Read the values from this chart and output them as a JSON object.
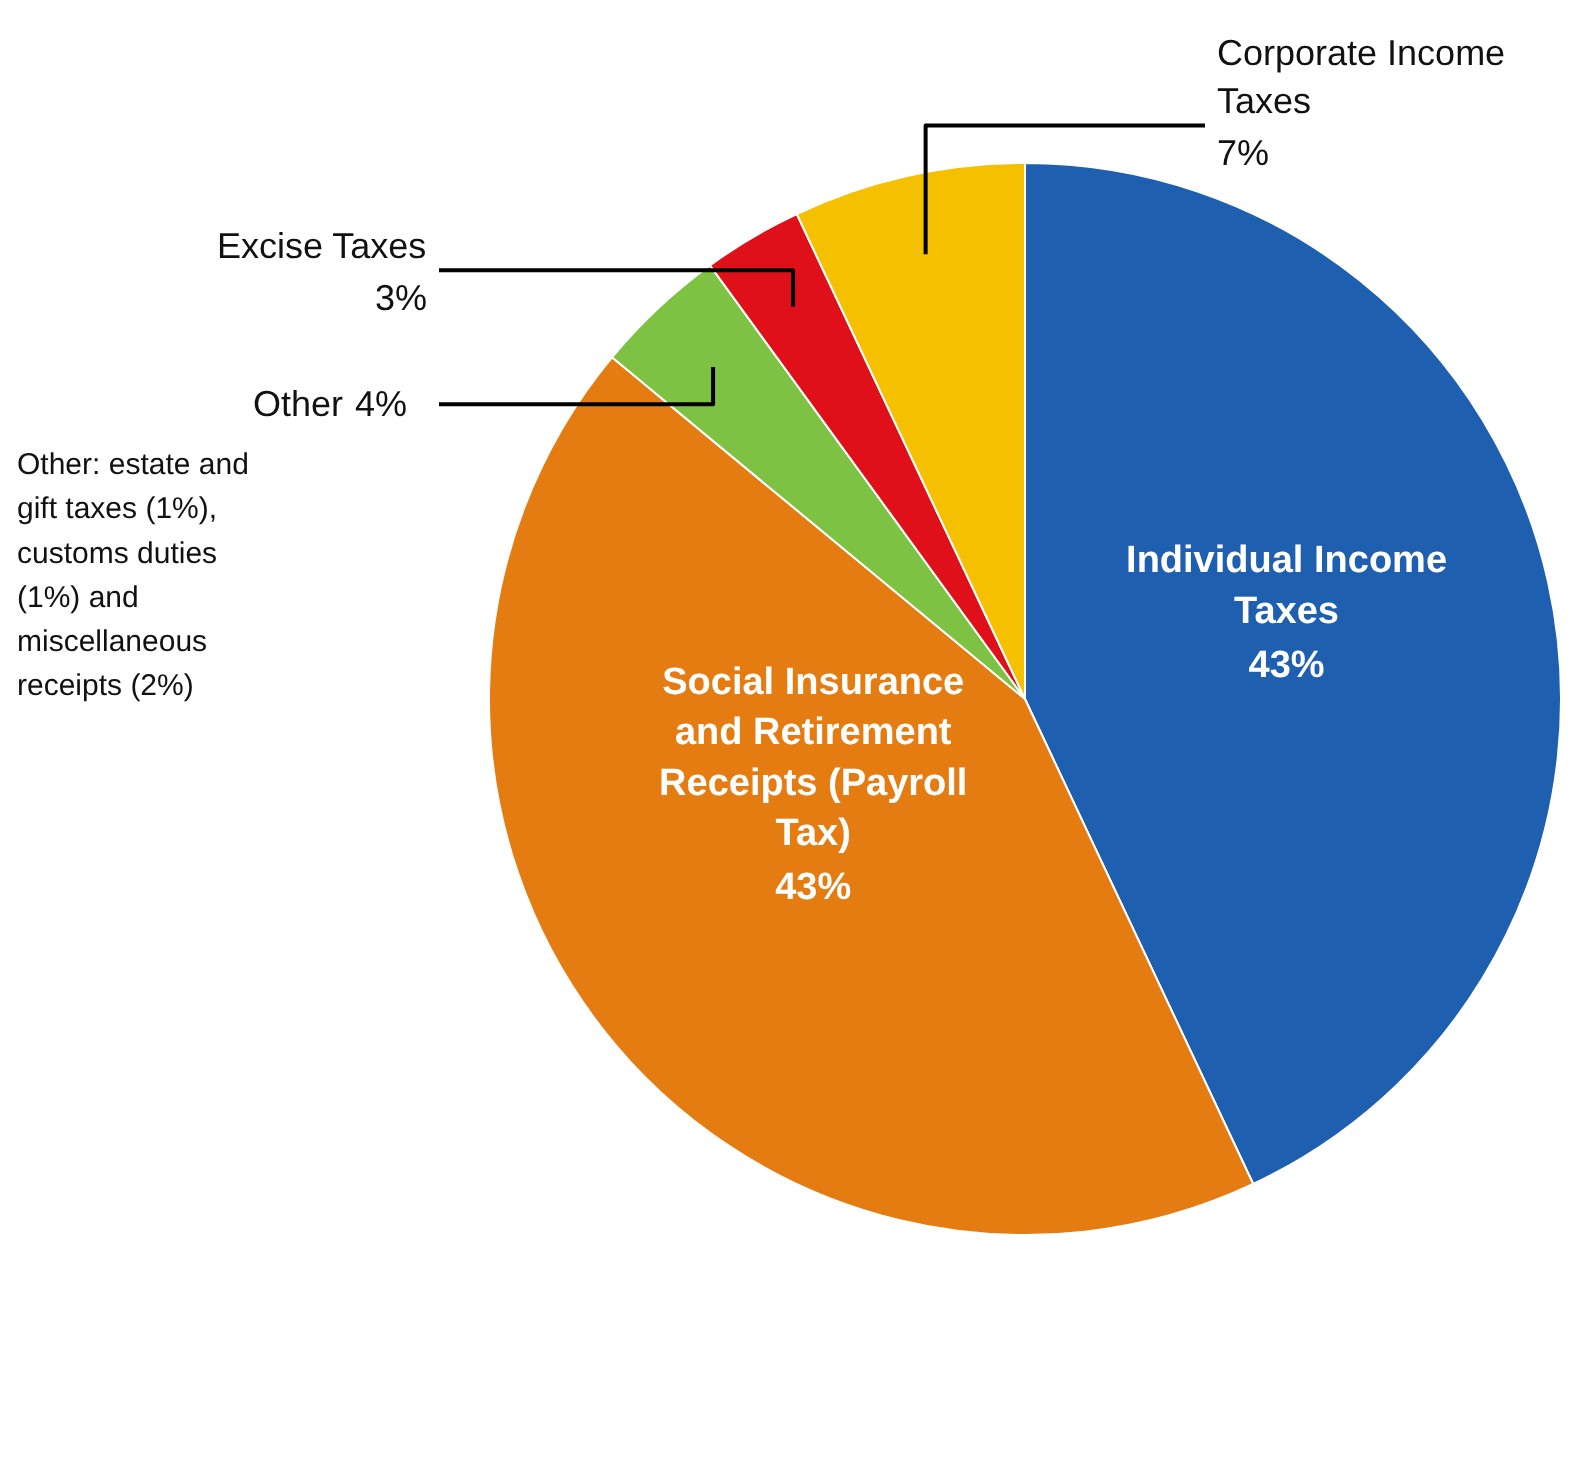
{
  "chart_data": {
    "type": "pie",
    "categories": [
      "Individual Income Taxes",
      "Social Insurance and Retirement Receipts (Payroll Tax)",
      "Other",
      "Excise Taxes",
      "Corporate Income Taxes"
    ],
    "values": [
      43,
      43,
      4,
      3,
      7
    ],
    "colors": [
      "#1f5fb0",
      "#e57c12",
      "#7dc242",
      "#e0101a",
      "#f5c000"
    ],
    "value_labels": [
      "43%",
      "43%",
      "4%",
      "3%",
      "7%"
    ],
    "legend": false,
    "annotations": [
      "Other: estate and gift taxes (1%), customs duties (1%) and miscellaneous receipts (2%)"
    ]
  }
}
